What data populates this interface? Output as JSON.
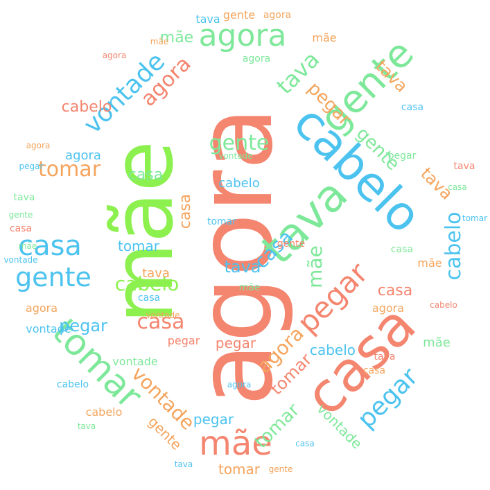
{
  "words": {
    "agora": "agora",
    "mae": "mãe",
    "casa": "casa",
    "gente": "gente",
    "tava": "tava",
    "cabelo": "cabelo",
    "tomar": "tomar",
    "vontade": "vontade",
    "pegar": "pegar"
  },
  "colors": {
    "red": "#f4856f",
    "green": "#8cf04e",
    "light_green": "#a6ef7e",
    "blue": "#4cc3ef",
    "orange": "#f5a45c",
    "mint": "#7ee89a"
  }
}
